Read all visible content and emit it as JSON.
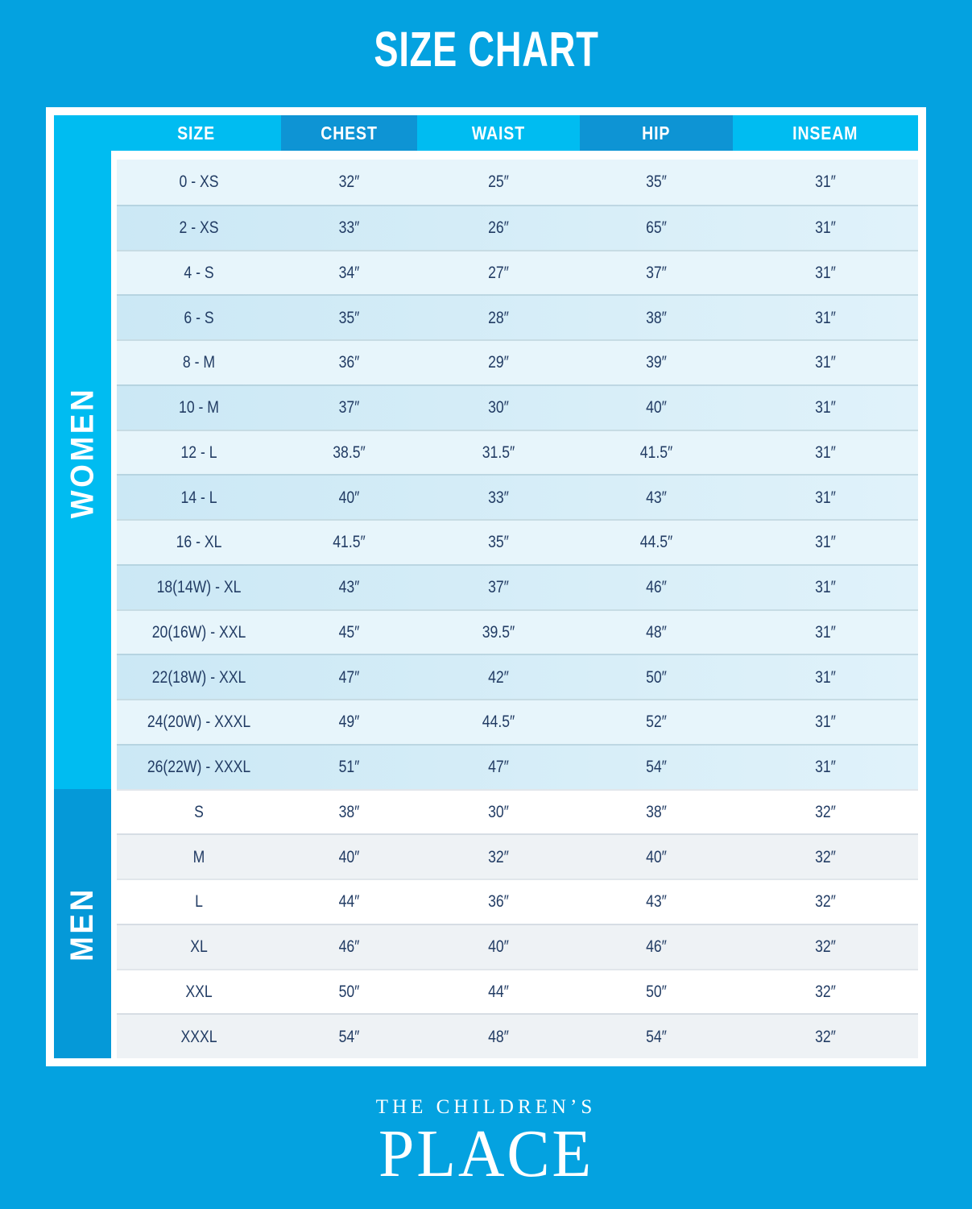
{
  "title": "SIZE CHART",
  "chart_data": {
    "type": "table",
    "title": "SIZE CHART",
    "columns": [
      "SIZE",
      "CHEST",
      "WAIST",
      "HIP",
      "INSEAM"
    ],
    "sections": [
      {
        "label": "WOMEN",
        "rows": [
          [
            "0 - XS",
            "32″",
            "25″",
            "35″",
            "31″"
          ],
          [
            "2 - XS",
            "33″",
            "26″",
            "65″",
            "31″"
          ],
          [
            "4 - S",
            "34″",
            "27″",
            "37″",
            "31″"
          ],
          [
            "6 - S",
            "35″",
            "28″",
            "38″",
            "31″"
          ],
          [
            "8 - M",
            "36″",
            "29″",
            "39″",
            "31″"
          ],
          [
            "10 - M",
            "37″",
            "30″",
            "40″",
            "31″"
          ],
          [
            "12 - L",
            "38.5″",
            "31.5″",
            "41.5″",
            "31″"
          ],
          [
            "14 - L",
            "40″",
            "33″",
            "43″",
            "31″"
          ],
          [
            "16 - XL",
            "41.5″",
            "35″",
            "44.5″",
            "31″"
          ],
          [
            "18(14W) - XL",
            "43″",
            "37″",
            "46″",
            "31″"
          ],
          [
            "20(16W) - XXL",
            "45″",
            "39.5″",
            "48″",
            "31″"
          ],
          [
            "22(18W) - XXL",
            "47″",
            "42″",
            "50″",
            "31″"
          ],
          [
            "24(20W) - XXXL",
            "49″",
            "44.5″",
            "52″",
            "31″"
          ],
          [
            "26(22W) - XXXL",
            "51″",
            "47″",
            "54″",
            "31″"
          ]
        ]
      },
      {
        "label": "MEN",
        "rows": [
          [
            "S",
            "38″",
            "30″",
            "38″",
            "32″"
          ],
          [
            "M",
            "40″",
            "32″",
            "40″",
            "32″"
          ],
          [
            "L",
            "44″",
            "36″",
            "43″",
            "32″"
          ],
          [
            "XL",
            "46″",
            "40″",
            "46″",
            "32″"
          ],
          [
            "XXL",
            "50″",
            "44″",
            "50″",
            "32″"
          ],
          [
            "XXXL",
            "54″",
            "48″",
            "54″",
            "32″"
          ]
        ]
      }
    ]
  },
  "brand": {
    "line1": "THE CHILDREN’S",
    "line2": "PLACE"
  },
  "colors": {
    "background": "#04A2E0",
    "women_bar": "#00BCF1",
    "men_bar": "#0599D8",
    "header_light": "#00BCF1",
    "header_dark": "#0E94D4",
    "row_light_blue": "#E7F5FB",
    "row_medium_blue": "#CBE8F5",
    "row_white": "#FFFFFF",
    "row_gray": "#EEF2F5",
    "text_navy": "#223C64",
    "text_white": "#FFFFFF"
  }
}
